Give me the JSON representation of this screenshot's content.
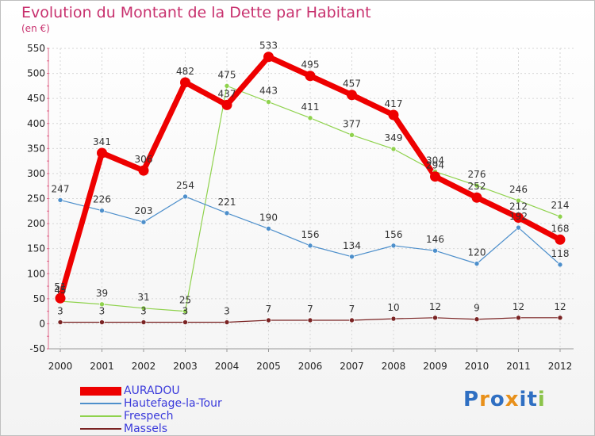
{
  "header": {
    "title": "Evolution du Montant de la Dette par Habitant",
    "unit": "(en €)"
  },
  "chart_data": {
    "type": "line",
    "title": "Evolution du Montant de la Dette par Habitant",
    "subtitle": "(en €)",
    "xlabel": "",
    "ylabel": "",
    "x": [
      "2000",
      "2001",
      "2002",
      "2003",
      "2004",
      "2005",
      "2006",
      "2007",
      "2008",
      "2009",
      "2010",
      "2011",
      "2012"
    ],
    "ylim": [
      -50,
      550
    ],
    "yticks": [
      -50,
      0,
      50,
      100,
      150,
      200,
      250,
      300,
      350,
      400,
      450,
      500,
      550
    ],
    "grid": true,
    "legend": "bottom-left",
    "series": [
      {
        "name": "AURADOU",
        "color": "#ee0000",
        "values": [
          51,
          341,
          306,
          482,
          437,
          533,
          495,
          457,
          417,
          294,
          252,
          212,
          168
        ]
      },
      {
        "name": "Hautefage-la-Tour",
        "color": "#4d8fcb",
        "values": [
          247,
          226,
          203,
          254,
          221,
          190,
          156,
          134,
          156,
          146,
          120,
          192,
          118
        ]
      },
      {
        "name": "Frespech",
        "color": "#8fd24d",
        "values": [
          45,
          39,
          31,
          25,
          475,
          443,
          411,
          377,
          349,
          304,
          276,
          246,
          214
        ]
      },
      {
        "name": "Massels",
        "color": "#7a2323",
        "values": [
          3,
          3,
          3,
          3,
          3,
          7,
          7,
          7,
          10,
          12,
          9,
          12,
          12
        ]
      }
    ]
  },
  "legend": {
    "items": [
      "AURADOU",
      "Hautefage-la-Tour",
      "Frespech",
      "Massels"
    ]
  },
  "brand": {
    "letters": [
      "P",
      "r",
      "o",
      "x",
      "i",
      "t",
      "i"
    ],
    "colors": [
      "#2f6fc2",
      "#e8901a",
      "#2f6fc2",
      "#e8901a",
      "#2f6fc2",
      "#2f6fc2",
      "#8bc34a"
    ]
  }
}
